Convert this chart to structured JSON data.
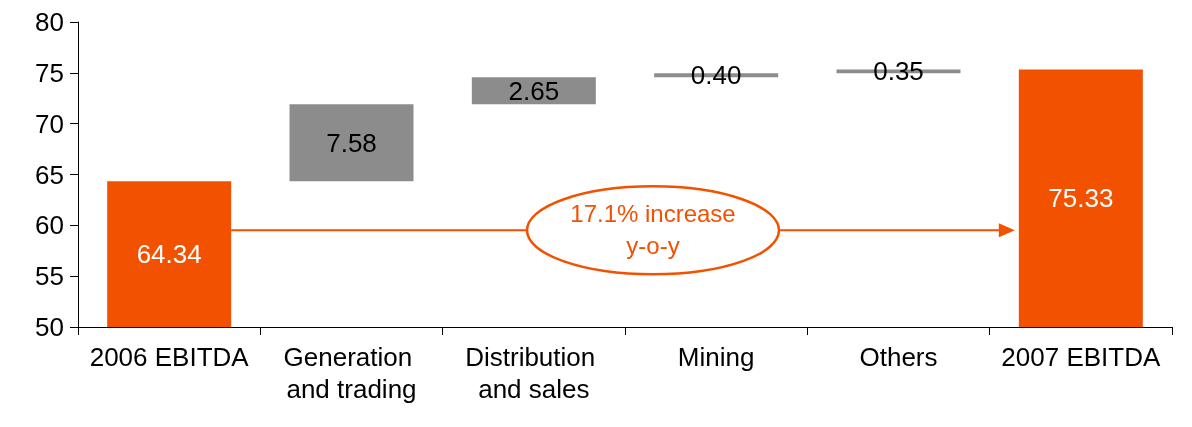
{
  "chart_data": {
    "type": "bar",
    "categories": [
      "2006 EBITDA",
      "Generation and trading",
      "Distribution and sales",
      "Mining",
      "Others",
      "2007 EBITDA"
    ],
    "values": [
      64.34,
      7.58,
      2.65,
      0.4,
      0.35,
      75.33
    ],
    "base": [
      null,
      64.34,
      71.92,
      74.57,
      74.97,
      null
    ],
    "colors": [
      "#f25100",
      "#8c8c8c",
      "#8c8c8c",
      "#8c8c8c",
      "#8c8c8c",
      "#f25100"
    ],
    "ylim": [
      50,
      80
    ],
    "yticks": [
      50,
      55,
      60,
      65,
      70,
      75,
      80
    ],
    "value_labels": [
      "64.34",
      "7.58",
      "2.65",
      "0.40",
      "0.35",
      "75.33"
    ],
    "grid": false,
    "annotations": [
      "17.1% increase y-o-y"
    ]
  }
}
